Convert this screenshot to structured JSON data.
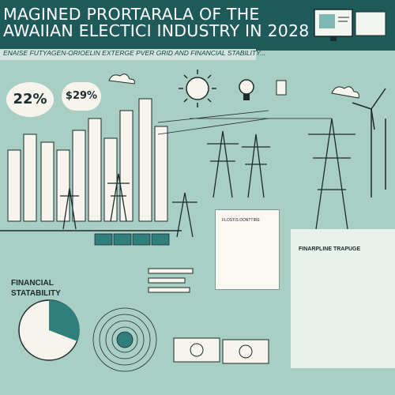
{
  "header": {
    "title_line1": "MAGINED PRORTARALA OF   THE",
    "title_line2": "AWAIIAN ELECTICI  INDUSTRY IN 2028",
    "subtitle": "ENAISE FUTYAGEN-ORIOELIN EXTERGE PVER GRID AND FINANCIAL STABILITY..."
  },
  "stats": {
    "pct_one": "22%",
    "pct_two": "$29%"
  },
  "labels": {
    "financial": "FINANCIAL STATABILITY",
    "document": "FLOSTIS DONTTIRE",
    "right_panel": "FINARPLINE TRAPUGE"
  },
  "colors": {
    "background": "#a9cfc4",
    "band": "#1f5a5a",
    "paper": "#f6f4ec",
    "line": "#1c2b2b",
    "accent": "#2f7f7c"
  }
}
